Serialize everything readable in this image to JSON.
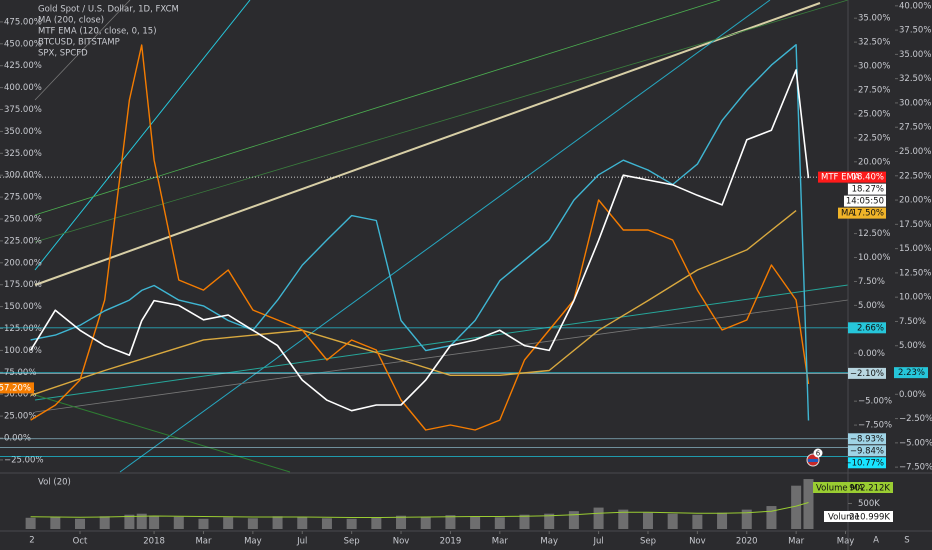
{
  "chart_data": {
    "type": "line",
    "title": "Gold Spot / U.S. Dollar, 1D, FXCM",
    "x": [
      0,
      1,
      2,
      3,
      4,
      4.5,
      5,
      6,
      7,
      8,
      9,
      10,
      11,
      12,
      13,
      14,
      15,
      16,
      17,
      18,
      19,
      20,
      21,
      22,
      23,
      24,
      25,
      26,
      27,
      28,
      29,
      30,
      31,
      31.5
    ],
    "xlim": [
      -1.24,
      33.1
    ],
    "xticks": [
      {
        "value": 2,
        "label": "Oct"
      },
      {
        "value": 5,
        "label": "2018"
      },
      {
        "value": 7,
        "label": "Mar"
      },
      {
        "value": 9,
        "label": "May"
      },
      {
        "value": 11,
        "label": "Jul"
      },
      {
        "value": 13,
        "label": "Sep"
      },
      {
        "value": 15,
        "label": "Nov"
      },
      {
        "value": 17,
        "label": "2019"
      },
      {
        "value": 19,
        "label": "Mar"
      },
      {
        "value": 21,
        "label": "May"
      },
      {
        "value": 23,
        "label": "Jul"
      },
      {
        "value": 25,
        "label": "Sep"
      },
      {
        "value": 27,
        "label": "Nov"
      },
      {
        "value": 29,
        "label": "2020"
      },
      {
        "value": 31,
        "label": "Mar"
      },
      {
        "value": 33,
        "label": "May"
      }
    ],
    "ylim": [
      -12.4,
      36.9
    ],
    "yticks": [
      {
        "value": 35,
        "label": "35.00%"
      },
      {
        "value": 32.5,
        "label": "32.50%"
      },
      {
        "value": 30,
        "label": "30.00%"
      },
      {
        "value": 27.5,
        "label": "27.50%"
      },
      {
        "value": 25,
        "label": "25.00%"
      },
      {
        "value": 22.5,
        "label": "22.50%"
      },
      {
        "value": 20,
        "label": "20.00%"
      },
      {
        "value": 12.5,
        "label": "12.50%"
      },
      {
        "value": 10,
        "label": "10.00%"
      },
      {
        "value": 7.5,
        "label": "7.50%"
      },
      {
        "value": 5,
        "label": "5.00%"
      },
      {
        "value": 0,
        "label": "0.00%"
      },
      {
        "value": -5,
        "label": "−5.00%"
      },
      {
        "value": -7.5,
        "label": "−7.50%"
      }
    ],
    "y2lim": [
      -8.0,
      40.6
    ],
    "y2ticks": [
      {
        "value": 40,
        "label": "40.00%"
      },
      {
        "value": 37.5,
        "label": "37.50%"
      },
      {
        "value": 35,
        "label": "35.00%"
      },
      {
        "value": 32.5,
        "label": "32.50%"
      },
      {
        "value": 30,
        "label": "30.00%"
      },
      {
        "value": 27.5,
        "label": "27.50%"
      },
      {
        "value": 25,
        "label": "25.00%"
      },
      {
        "value": 22.5,
        "label": "22.50%"
      },
      {
        "value": 20,
        "label": "20.00%"
      },
      {
        "value": 17.5,
        "label": "17.50%"
      },
      {
        "value": 15,
        "label": "15.00%"
      },
      {
        "value": 12.5,
        "label": "12.50%"
      },
      {
        "value": 10,
        "label": "10.00%"
      },
      {
        "value": 7.5,
        "label": "7.50%"
      },
      {
        "value": 5,
        "label": "5.00%"
      },
      {
        "value": 0,
        "label": "0.00%"
      },
      {
        "value": -2.5,
        "label": "−2.50%"
      },
      {
        "value": -5,
        "label": "−5.00%"
      },
      {
        "value": -7.5,
        "label": "−7.50%"
      }
    ],
    "y3lim": [
      -38.8,
      500
    ],
    "y3ticks": [
      {
        "value": 475,
        "label": "475.00%"
      },
      {
        "value": 450,
        "label": "450.00%"
      },
      {
        "value": 425,
        "label": "425.00%"
      },
      {
        "value": 400,
        "label": "400.00%"
      },
      {
        "value": 375,
        "label": "375.00%"
      },
      {
        "value": 350,
        "label": "350.00%"
      },
      {
        "value": 325,
        "label": "325.00%"
      },
      {
        "value": 300,
        "label": "300.00%"
      },
      {
        "value": 275,
        "label": "275.00%"
      },
      {
        "value": 250,
        "label": "250.00%"
      },
      {
        "value": 225,
        "label": "225.00%"
      },
      {
        "value": 200,
        "label": "200.00%"
      },
      {
        "value": 175,
        "label": "175.00%"
      },
      {
        "value": 150,
        "label": "150.00%"
      },
      {
        "value": 125,
        "label": "125.00%"
      },
      {
        "value": 100,
        "label": "100.00%"
      },
      {
        "value": 75,
        "label": "75.00%"
      },
      {
        "value": 50,
        "label": "50.00%"
      },
      {
        "value": 25,
        "label": "25.00%"
      },
      {
        "value": 0,
        "label": "0.00%"
      },
      {
        "value": -25,
        "label": "−25.00%"
      }
    ],
    "series": [
      {
        "name": "Gold Spot / U.S. Dollar, 1D, FXCM",
        "color": "#ffffff",
        "axis": "y",
        "values": [
          0.3,
          4.5,
          2.4,
          0.8,
          -0.2,
          3.4,
          5.5,
          5.0,
          3.5,
          4.0,
          2.4,
          0.8,
          -2.8,
          -4.9,
          -6.0,
          -5.4,
          -5.4,
          -2.8,
          0.8,
          1.4,
          2.4,
          0.8,
          0.3,
          5.5,
          11.8,
          18.6,
          18.1,
          17.6,
          16.5,
          15.5,
          22.3,
          23.3,
          29.6,
          18.3
        ]
      },
      {
        "name": "MA (200, close)",
        "color": "#d9a93f",
        "axis": "y",
        "x": [
          0,
          3,
          7,
          11,
          15,
          17,
          19,
          21,
          23,
          25,
          27,
          29,
          31
        ],
        "values": [
          -4.4,
          -1.8,
          1.4,
          2.4,
          -0.7,
          -2.3,
          -2.3,
          -1.8,
          2.4,
          5.5,
          8.7,
          10.8,
          14.9
        ]
      },
      {
        "name": "BTCUSD, BITSTAMP",
        "color": "#f57c00",
        "axis": "y3",
        "values": [
          20.5,
          37.6,
          66.2,
          157.5,
          385.8,
          448.6,
          317.2,
          180.4,
          168.9,
          191.8,
          146.1,
          134.7,
          123.3,
          89.0,
          111.9,
          100.5,
          43.4,
          9.1,
          14.8,
          9.1,
          20.5,
          89.0,
          123.3,
          157.5,
          271.7,
          237.4,
          237.4,
          226.0,
          168.9,
          123.3,
          134.7,
          197.5,
          157.5,
          61.6
        ]
      },
      {
        "name": "SPX, SPCFD",
        "color": "#3fb6d3",
        "axis": "y2",
        "values": [
          5.6,
          6.1,
          7.1,
          8.6,
          9.7,
          10.7,
          11.2,
          9.7,
          9.1,
          7.6,
          6.6,
          9.7,
          13.3,
          15.9,
          18.4,
          17.9,
          7.6,
          4.5,
          5.0,
          7.6,
          11.7,
          13.8,
          15.9,
          20.0,
          22.6,
          24.1,
          23.1,
          21.6,
          23.7,
          28.2,
          31.3,
          33.9,
          36.0,
          -2.7
        ]
      }
    ],
    "mtf_ema": {
      "name": "MTF EMA (120, close, 0, 15)",
      "label": "MTF EMA",
      "value": 18.4,
      "value_label": "18.40%",
      "color": "#ff1a1a",
      "axis": "y"
    },
    "last_price": {
      "value": 18.27,
      "value_label": "18.27%",
      "countdown": "14:05:50",
      "axis": "y"
    },
    "ma_label": {
      "label": "MA",
      "value": 17.5,
      "value_label": "17.50%",
      "color": "#f0b429",
      "axis": "y"
    },
    "hlines": [
      {
        "value": 2.66,
        "value_label": "2.66%",
        "color": "#26c6da",
        "axis": "y"
      },
      {
        "value": -2.1,
        "value_label": "−2.10%",
        "color": "#b8d6e0",
        "axis": "y"
      },
      {
        "value": -8.93,
        "value_label": "−8.93%",
        "color": "#9fd4e6",
        "axis": "y"
      },
      {
        "value": -9.84,
        "value_label": "−9.84%",
        "color": "#9fd4e6",
        "axis": "y"
      },
      {
        "value": -10.77,
        "value_label": "−10.77%",
        "color": "#18e4ff",
        "axis": "y"
      },
      {
        "value": 2.23,
        "value_label": "2.23%",
        "color": "#26c6da",
        "axis": "y2"
      }
    ],
    "btc_last": {
      "value": 57.2,
      "value_label": "57.20%",
      "color": "#f57c00",
      "axis": "y3"
    },
    "volume": {
      "title": "Vol (20)",
      "color": "#8c8c8c",
      "values": [
        220000,
        240000,
        200000,
        250000,
        280000,
        300000,
        260000,
        240000,
        200000,
        230000,
        210000,
        250000,
        230000,
        210000,
        200000,
        220000,
        260000,
        240000,
        270000,
        250000,
        230000,
        280000,
        300000,
        350000,
        420000,
        380000,
        320000,
        300000,
        280000,
        320000,
        380000,
        450000,
        850000,
        980000
      ],
      "ma_color": "#9acd32",
      "ma_values": [
        240000,
        235000,
        230000,
        235000,
        245000,
        250000,
        255000,
        250000,
        245000,
        240000,
        235000,
        235000,
        235000,
        230000,
        225000,
        225000,
        230000,
        235000,
        240000,
        245000,
        245000,
        250000,
        260000,
        280000,
        310000,
        330000,
        330000,
        320000,
        310000,
        310000,
        320000,
        350000,
        450000,
        520000
      ],
      "ylim": [
        0,
        1040000
      ],
      "yticks": [
        {
          "value": 500000,
          "label": "500K"
        }
      ],
      "ma_label": "Volume MA",
      "ma_value": 902212,
      "ma_value_label": "902.212K",
      "last_label": "Volume",
      "last_value": 210999,
      "last_value_label": "210.999K"
    },
    "event_count": 6,
    "corner_label": "2",
    "controls": [
      "A",
      "S"
    ]
  }
}
